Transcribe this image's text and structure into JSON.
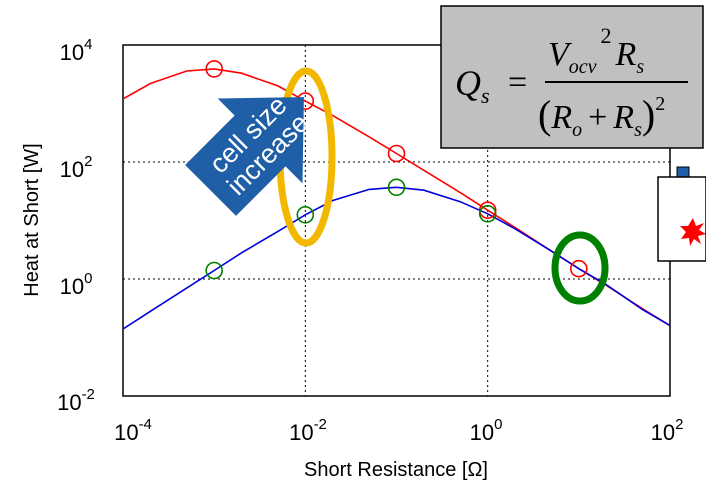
{
  "chart_data": {
    "type": "line",
    "xlabel": "Short Resistance [Ω]",
    "ylabel": "Heat at Short [W]",
    "xscale": "log",
    "yscale": "log",
    "xlim": [
      0.0001,
      100
    ],
    "ylim": [
      0.01,
      10000
    ],
    "grid": true,
    "x_ticks": [
      {
        "base": "10",
        "exp": "-4"
      },
      {
        "base": "10",
        "exp": "-2"
      },
      {
        "base": "10",
        "exp": "0"
      },
      {
        "base": "10",
        "exp": "2"
      }
    ],
    "y_ticks": [
      {
        "base": "10",
        "exp": "4"
      },
      {
        "base": "10",
        "exp": "2"
      },
      {
        "base": "10",
        "exp": "0"
      },
      {
        "base": "10",
        "exp": "-2"
      }
    ],
    "series": [
      {
        "color": "#ff0000",
        "curve": {
          "x": [
            0.0001,
            0.0002,
            0.0005,
            0.001,
            0.002,
            0.005,
            0.01,
            0.02,
            0.05,
            0.1,
            0.2,
            0.5,
            1,
            2,
            5,
            10,
            20,
            50,
            100
          ],
          "y": [
            1200,
            2200,
            3600,
            3900,
            3300,
            2000,
            1100,
            620,
            270,
            140,
            72,
            30,
            15,
            7.6,
            3.0,
            1.5,
            0.78,
            0.31,
            0.16
          ]
        },
        "markers": {
          "x": [
            0.001,
            0.01,
            0.1,
            1,
            10
          ],
          "y": [
            3900,
            1100,
            140,
            15,
            1.5
          ]
        }
      },
      {
        "color": "#0000dd",
        "curve": {
          "x": [
            0.0001,
            0.0002,
            0.0005,
            0.001,
            0.002,
            0.005,
            0.01,
            0.02,
            0.05,
            0.1,
            0.2,
            0.5,
            1,
            2,
            5,
            10,
            20,
            50,
            100
          ],
          "y": [
            0.14,
            0.28,
            0.7,
            1.4,
            2.8,
            6.5,
            12.5,
            22,
            34,
            37,
            33,
            21,
            13,
            7.2,
            3.0,
            1.5,
            0.8,
            0.3,
            0.16
          ]
        },
        "markers": {
          "x": [
            0.001,
            0.01,
            0.1,
            1
          ],
          "y": [
            1.4,
            12.5,
            37,
            13
          ]
        }
      }
    ],
    "annotations": {
      "arrow_text_line1": "cell size",
      "arrow_text_line2": "increase",
      "arrow_color": "#1f5fa8",
      "gold_ellipse_color": "#f2b800",
      "green_ellipse_color": "#008000",
      "equation": {
        "lhs_Q": "Q",
        "lhs_sub": "s",
        "equals": "=",
        "num_V": "V",
        "num_sub": "ocv",
        "num_exp": "2",
        "num_R": "R",
        "num_R_sub": "s",
        "den_open": "(",
        "den_Ro": "R",
        "den_Ro_sub": "o",
        "den_plus": "+",
        "den_Rs": "R",
        "den_Rs_sub": "s",
        "den_close": ")",
        "den_exp": "2",
        "box_color": "#c0c0c0"
      }
    }
  }
}
